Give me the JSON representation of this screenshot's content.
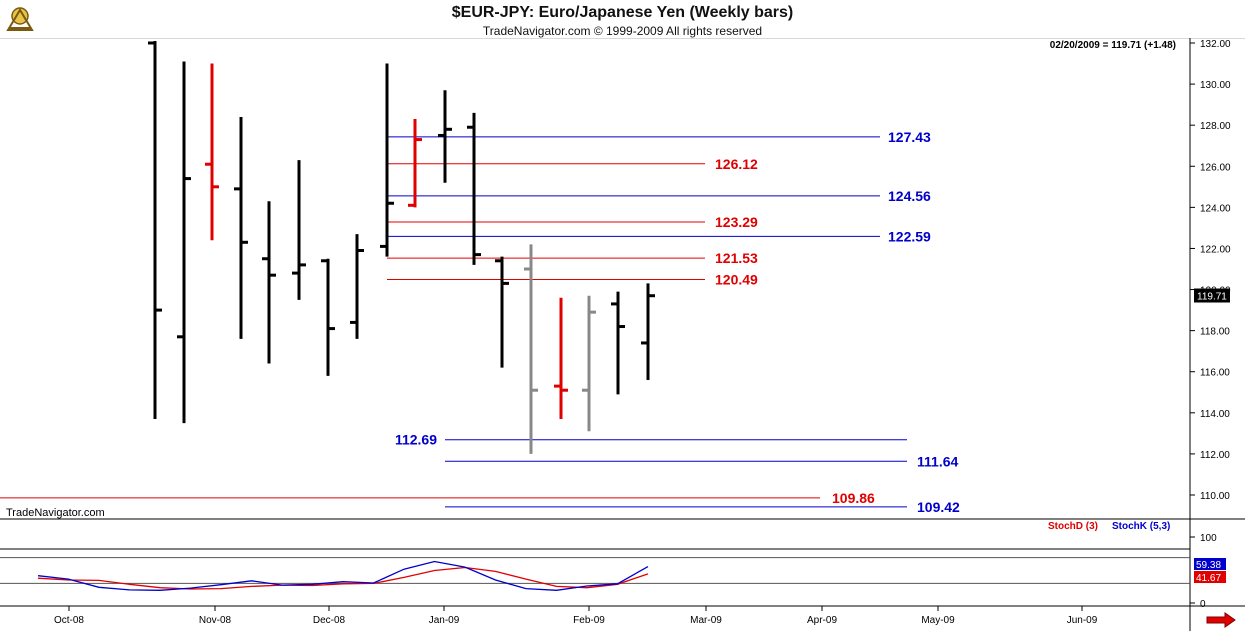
{
  "header": {
    "title": "$EUR-JPY:  Euro/Japanese Yen  (Weekly bars)",
    "subtitle": "TradeNavigator.com © 1999-2009 All rights reserved"
  },
  "readout": "02/20/2009 = 119.71 (+1.48)",
  "brand": "TradeNavigator.com",
  "colors": {
    "bar_black": "#000000",
    "bar_red": "#e00000",
    "bar_gray": "#888888",
    "line_red": "#e00000",
    "line_blue": "#0000cc",
    "stoch_d": "#e00000",
    "stoch_k": "#0000cc"
  },
  "chart_data": [
    {
      "type": "ohlc",
      "title": "$EUR-JPY:  Euro/Japanese Yen  (Weekly bars)",
      "ylim": [
        109.4,
        132.2
      ],
      "y_ticks": [
        "132.00",
        "130.00",
        "128.00",
        "126.00",
        "124.00",
        "122.00",
        "120.00",
        "118.00",
        "116.00",
        "114.00",
        "112.00",
        "110.00"
      ],
      "x_ticks": [
        "Oct-08",
        "Nov-08",
        "Dec-08",
        "Jan-09",
        "Feb-09",
        "Mar-09",
        "Apr-09",
        "May-09",
        "Jun-09"
      ],
      "last_price": "119.71",
      "bars": [
        {
          "date": "2008-10-10",
          "high": 132.1,
          "low": 113.7,
          "open": 132.0,
          "close": 119.0,
          "color": "black"
        },
        {
          "date": "2008-10-17",
          "high": 131.1,
          "low": 113.5,
          "open": 117.7,
          "close": 125.4,
          "color": "black"
        },
        {
          "date": "2008-10-24",
          "high": 131.0,
          "low": 122.4,
          "open": 126.1,
          "close": 125.0,
          "color": "red"
        },
        {
          "date": "2008-10-31",
          "high": 128.4,
          "low": 117.6,
          "open": 124.9,
          "close": 122.3,
          "color": "black"
        },
        {
          "date": "2008-11-07",
          "high": 124.3,
          "low": 116.4,
          "open": 121.5,
          "close": 120.7,
          "color": "black"
        },
        {
          "date": "2008-11-14",
          "high": 126.3,
          "low": 119.5,
          "open": 120.8,
          "close": 121.2,
          "color": "black"
        },
        {
          "date": "2008-11-21",
          "high": 121.5,
          "low": 115.8,
          "open": 121.4,
          "close": 118.1,
          "color": "black"
        },
        {
          "date": "2008-11-28",
          "high": 122.7,
          "low": 117.6,
          "open": 118.4,
          "close": 121.9,
          "color": "black"
        },
        {
          "date": "2008-12-05",
          "high": 131.0,
          "low": 121.6,
          "open": 122.1,
          "close": 124.2,
          "color": "black"
        },
        {
          "date": "2008-12-12",
          "high": 128.3,
          "low": 124.0,
          "open": 124.1,
          "close": 127.3,
          "color": "red"
        },
        {
          "date": "2008-12-19",
          "high": 129.7,
          "low": 125.2,
          "open": 127.5,
          "close": 127.8,
          "color": "black"
        },
        {
          "date": "2008-12-26",
          "high": 128.6,
          "low": 121.2,
          "open": 127.9,
          "close": 121.7,
          "color": "black"
        },
        {
          "date": "2009-01-02",
          "high": 121.6,
          "low": 116.2,
          "open": 121.4,
          "close": 120.3,
          "color": "black"
        },
        {
          "date": "2009-01-09",
          "high": 122.2,
          "low": 112.0,
          "open": 121.0,
          "close": 115.1,
          "color": "gray"
        },
        {
          "date": "2009-01-16",
          "high": 119.6,
          "low": 113.7,
          "open": 115.3,
          "close": 115.1,
          "color": "red"
        },
        {
          "date": "2009-01-23",
          "high": 119.7,
          "low": 113.1,
          "open": 115.1,
          "close": 118.9,
          "color": "gray"
        },
        {
          "date": "2009-01-30",
          "high": 119.9,
          "low": 114.9,
          "open": 119.3,
          "close": 118.2,
          "color": "black"
        },
        {
          "date": "2009-02-06",
          "high": 120.3,
          "low": 115.6,
          "open": 117.4,
          "close": 119.7,
          "color": "black"
        }
      ],
      "levels": [
        {
          "label": "127.43",
          "value": 127.43,
          "color": "blue"
        },
        {
          "label": "126.12",
          "value": 126.12,
          "color": "red"
        },
        {
          "label": "124.56",
          "value": 124.56,
          "color": "blue"
        },
        {
          "label": "123.29",
          "value": 123.29,
          "color": "red"
        },
        {
          "label": "122.59",
          "value": 122.59,
          "color": "blue"
        },
        {
          "label": "121.53",
          "value": 121.53,
          "color": "red"
        },
        {
          "label": "120.49",
          "value": 120.49,
          "color": "red"
        },
        {
          "label": "112.69",
          "value": 112.69,
          "color": "blue"
        },
        {
          "label": "111.64",
          "value": 111.64,
          "color": "blue"
        },
        {
          "label": "109.86",
          "value": 109.86,
          "color": "red"
        },
        {
          "label": "109.42",
          "value": 109.42,
          "color": "blue"
        }
      ]
    },
    {
      "type": "line",
      "ylim": [
        0,
        100
      ],
      "y_ticks": [
        "100",
        "0"
      ],
      "series": [
        {
          "name": "StochD (3)",
          "color": "red",
          "last_label": "41.67",
          "values": [
            32,
            28,
            27,
            18,
            10,
            7,
            8,
            13,
            16,
            15,
            19,
            20,
            34,
            50,
            57,
            48,
            30,
            13,
            10,
            18,
            42
          ]
        },
        {
          "name": "StochK (5,3)",
          "color": "blue",
          "last_label": "59.38",
          "values": [
            38,
            30,
            11,
            5,
            4,
            9,
            17,
            26,
            16,
            18,
            24,
            21,
            53,
            71,
            58,
            28,
            8,
            4,
            14,
            19,
            59
          ]
        }
      ]
    }
  ]
}
